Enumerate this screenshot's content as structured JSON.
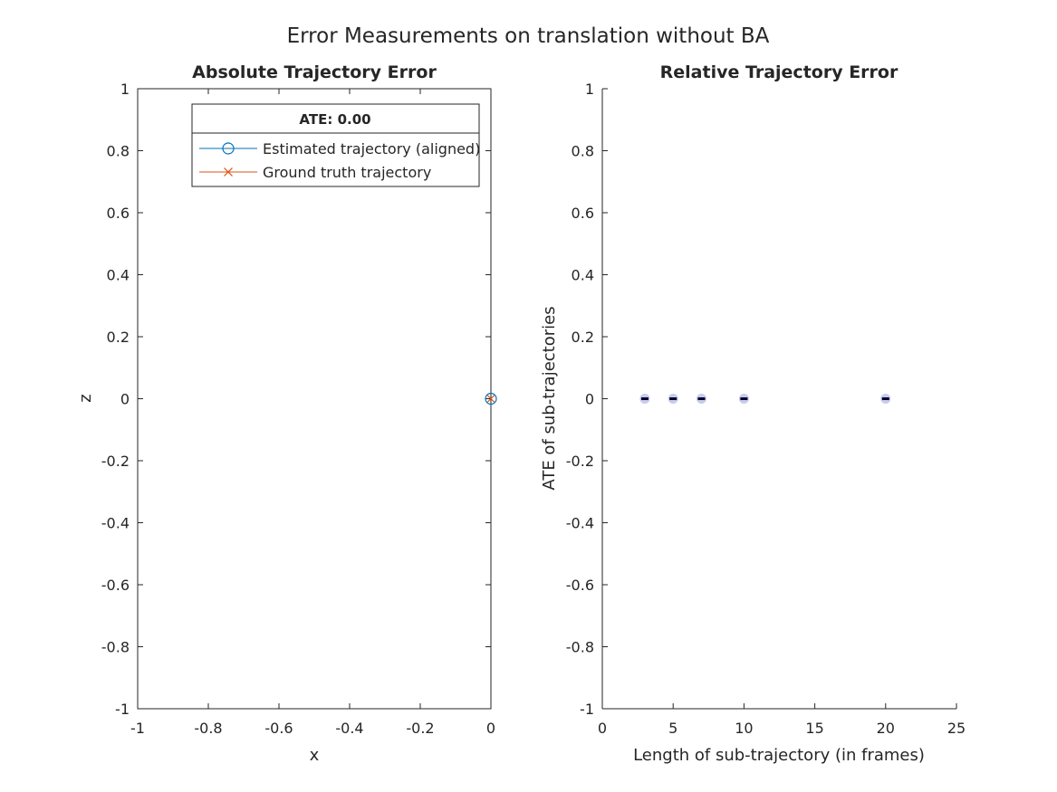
{
  "figure_title": "Error Measurements on translation without BA",
  "chart_data": [
    {
      "type": "line",
      "title": "Absolute Trajectory Error",
      "xlabel": "x",
      "ylabel": "z",
      "xlim": [
        -1,
        0
      ],
      "ylim": [
        -1,
        1
      ],
      "xticks": [
        -1,
        -0.8,
        -0.6,
        -0.4,
        -0.2,
        0
      ],
      "xtick_labels": [
        "-1",
        "-0.8",
        "-0.6",
        "-0.4",
        "-0.2",
        "0"
      ],
      "yticks": [
        -1,
        -0.8,
        -0.6,
        -0.4,
        -0.2,
        0,
        0.2,
        0.4,
        0.6,
        0.8,
        1
      ],
      "ytick_labels": [
        "-1",
        "-0.8",
        "-0.6",
        "-0.4",
        "-0.2",
        "0",
        "0.2",
        "0.4",
        "0.6",
        "0.8",
        "1"
      ],
      "grid": false,
      "legend": {
        "title": "ATE: 0.00",
        "placement": "top-right",
        "entries": [
          "Estimated trajectory (aligned)",
          "Ground truth trajectory"
        ]
      },
      "series": [
        {
          "name": "Estimated trajectory (aligned)",
          "marker": "circle",
          "color": "#0072BD",
          "points": [
            {
              "x": 0,
              "y": 0
            }
          ]
        },
        {
          "name": "Ground truth trajectory",
          "marker": "x",
          "color": "#D95319",
          "points": [
            {
              "x": 0,
              "y": 0
            }
          ]
        }
      ]
    },
    {
      "type": "scatter",
      "title": "Relative Trajectory Error",
      "xlabel": "Length of sub-trajectory (in frames)",
      "ylabel": "ATE of sub-trajectories",
      "xlim": [
        0,
        25
      ],
      "ylim": [
        -1,
        1
      ],
      "xticks": [
        0,
        5,
        10,
        15,
        20,
        25
      ],
      "xtick_labels": [
        "0",
        "5",
        "10",
        "15",
        "20",
        "25"
      ],
      "yticks": [
        -1,
        -0.8,
        -0.6,
        -0.4,
        -0.2,
        0,
        0.2,
        0.4,
        0.6,
        0.8,
        1
      ],
      "ytick_labels": [
        "-1",
        "-0.8",
        "-0.6",
        "-0.4",
        "-0.2",
        "0",
        "0.2",
        "0.4",
        "0.6",
        "0.8",
        "1"
      ],
      "grid": false,
      "series": [
        {
          "marker": "dot-with-median",
          "color": "#c8cce8",
          "median_color": "#000033",
          "points": [
            {
              "x": 3,
              "y": 0
            },
            {
              "x": 5,
              "y": 0
            },
            {
              "x": 7,
              "y": 0
            },
            {
              "x": 10,
              "y": 0
            },
            {
              "x": 20,
              "y": 0
            }
          ]
        }
      ]
    }
  ]
}
